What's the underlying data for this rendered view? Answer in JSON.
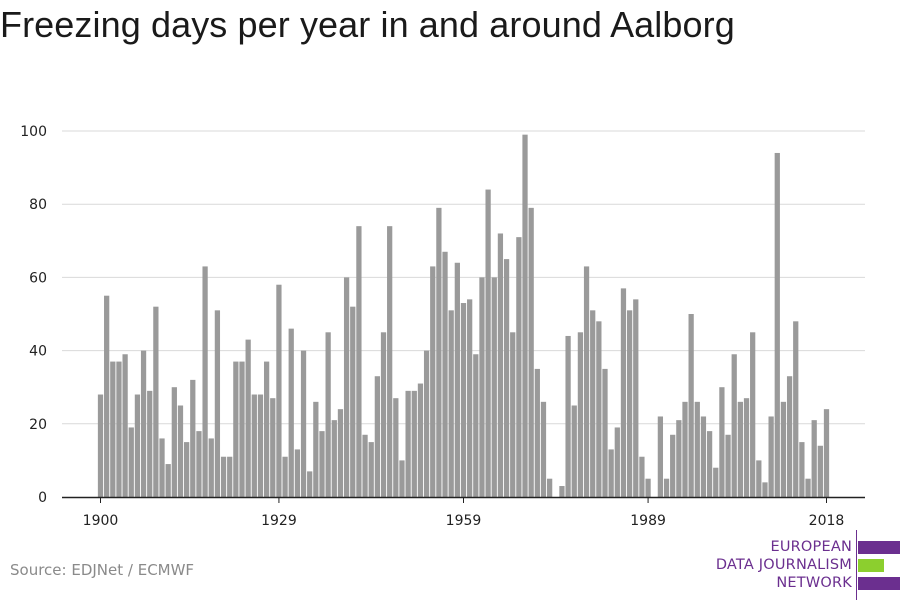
{
  "title": "Freezing days per year in and around Aalborg",
  "source": "Source: EDJNet / ECMWF",
  "logo": {
    "lines": [
      "EUROPEAN",
      "DATA JOURNALISM",
      "NETWORK"
    ],
    "colors": [
      "#6b2f8f",
      "#8ccf2e",
      "#6b2f8f"
    ]
  },
  "chart_data": {
    "type": "bar",
    "title": "Freezing days per year in and around Aalborg",
    "xlabel": "",
    "ylabel": "",
    "x": [
      1900,
      1901,
      1902,
      1903,
      1904,
      1905,
      1906,
      1907,
      1908,
      1909,
      1910,
      1911,
      1912,
      1913,
      1914,
      1915,
      1916,
      1917,
      1918,
      1919,
      1920,
      1921,
      1922,
      1923,
      1924,
      1925,
      1926,
      1927,
      1928,
      1929,
      1930,
      1931,
      1932,
      1933,
      1934,
      1935,
      1936,
      1937,
      1938,
      1939,
      1940,
      1941,
      1942,
      1943,
      1944,
      1945,
      1946,
      1947,
      1948,
      1949,
      1950,
      1951,
      1952,
      1953,
      1954,
      1955,
      1956,
      1957,
      1958,
      1959,
      1960,
      1961,
      1962,
      1963,
      1964,
      1965,
      1966,
      1967,
      1968,
      1969,
      1970,
      1971,
      1972,
      1973,
      1974,
      1975,
      1976,
      1977,
      1978,
      1979,
      1980,
      1981,
      1982,
      1983,
      1984,
      1985,
      1986,
      1987,
      1988,
      1989,
      1990,
      1991,
      1992,
      1993,
      1994,
      1995,
      1996,
      1997,
      1998,
      1999,
      2000,
      2001,
      2002,
      2003,
      2004,
      2005,
      2006,
      2007,
      2008,
      2009,
      2010,
      2011,
      2012,
      2013,
      2014,
      2015,
      2016,
      2017,
      2018
    ],
    "values": [
      28,
      55,
      37,
      37,
      39,
      19,
      28,
      40,
      29,
      52,
      16,
      9,
      30,
      25,
      15,
      32,
      18,
      63,
      16,
      51,
      11,
      11,
      37,
      37,
      43,
      28,
      28,
      37,
      27,
      58,
      11,
      46,
      13,
      40,
      7,
      26,
      18,
      45,
      21,
      24,
      60,
      52,
      74,
      17,
      15,
      33,
      45,
      74,
      27,
      10,
      29,
      29,
      31,
      40,
      63,
      79,
      67,
      51,
      64,
      53,
      54,
      39,
      60,
      84,
      60,
      72,
      65,
      45,
      71,
      99,
      79,
      35,
      26,
      5,
      0,
      3,
      44,
      25,
      45,
      63,
      51,
      48,
      35,
      13,
      19,
      57,
      51,
      54,
      11,
      5,
      0,
      22,
      5,
      17,
      21,
      26,
      50,
      26,
      22,
      18,
      8,
      30,
      17,
      39,
      26,
      27,
      45,
      10,
      4,
      22,
      94,
      26,
      33,
      48,
      15,
      5,
      21,
      14,
      24
    ],
    "ylim": [
      0,
      100
    ],
    "yticks": [
      0,
      20,
      40,
      60,
      80,
      100
    ],
    "xticks": [
      1900,
      1929,
      1959,
      1989,
      2018
    ],
    "grid": true,
    "bar_color": "#9a9a9a"
  }
}
